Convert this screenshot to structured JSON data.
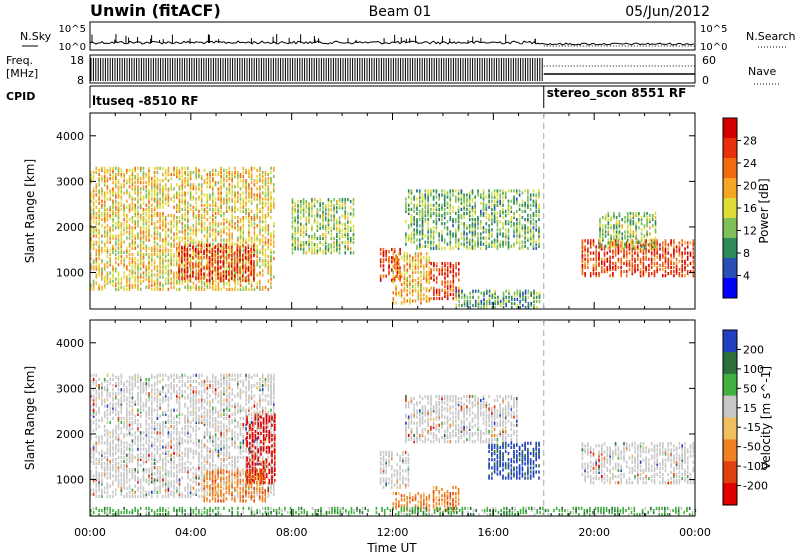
{
  "header": {
    "station": "Unwin (fitACF)",
    "beam": "Beam 01",
    "date": "05/Jun/2012"
  },
  "nsky_panel": {
    "left_label": "N.Sky",
    "right_label": "N.Search",
    "left_ticks": [
      "10^5",
      "10^0"
    ],
    "right_ticks": [
      "10^5",
      "10^0"
    ]
  },
  "freq_panel": {
    "label_line1": "Freq.",
    "label_line2": "[MHz]",
    "left_ticks": [
      "18",
      "8"
    ],
    "right_ticks": [
      "60",
      "0"
    ],
    "right_label": "Nave"
  },
  "cpid_panel": {
    "label": "CPID",
    "modes": [
      {
        "name": "ltuseq -8510 RF",
        "start_hour": 0,
        "end_hour": 18
      },
      {
        "name": "stereo_scon 8551 RF",
        "start_hour": 18,
        "end_hour": 24
      }
    ]
  },
  "x_axis": {
    "label": "Time UT",
    "ticks": [
      "00:00",
      "04:00",
      "08:00",
      "12:00",
      "16:00",
      "20:00",
      "00:00"
    ]
  },
  "mode_change_hour": 18,
  "colors": {
    "power": [
      "#0000ff",
      "#2a4fb4",
      "#2e8b57",
      "#7fbf5a",
      "#dede3a",
      "#f5a623",
      "#f06a10",
      "#e8310a",
      "#d40000"
    ],
    "velocity": [
      "#2040c0",
      "#2e6e3a",
      "#40b040",
      "#c8c8c8",
      "#f0c060",
      "#f08020",
      "#e04010",
      "#e00000"
    ]
  },
  "chart_data": [
    {
      "type": "heatmap",
      "title": "Power",
      "xlabel": "Time UT",
      "ylabel": "Slant Range [km]",
      "xlim": [
        0,
        24
      ],
      "ylim": [
        200,
        4500
      ],
      "yticks": [
        "1000",
        "2000",
        "3000",
        "4000"
      ],
      "colorbar": {
        "label": "Power [dB]",
        "ticks": [
          "4",
          "8",
          "12",
          "16",
          "20",
          "24",
          "28"
        ],
        "range": [
          0,
          32
        ]
      },
      "regions": [
        {
          "t0": 0.0,
          "t1": 7.3,
          "r0": 600,
          "r1": 3300,
          "level": 0.55
        },
        {
          "t0": 3.5,
          "t1": 6.5,
          "r0": 800,
          "r1": 1600,
          "level": 0.9
        },
        {
          "t0": 8.0,
          "t1": 10.5,
          "r0": 1400,
          "r1": 2600,
          "level": 0.4
        },
        {
          "t0": 11.5,
          "t1": 12.3,
          "r0": 800,
          "r1": 1500,
          "level": 0.9
        },
        {
          "t0": 12.0,
          "t1": 13.5,
          "r0": 300,
          "r1": 1400,
          "level": 0.6
        },
        {
          "t0": 13.5,
          "t1": 14.7,
          "r0": 400,
          "r1": 1200,
          "level": 0.85
        },
        {
          "t0": 12.5,
          "t1": 17.8,
          "r0": 1500,
          "r1": 2800,
          "level": 0.35
        },
        {
          "t0": 14.5,
          "t1": 17.8,
          "r0": 200,
          "r1": 600,
          "level": 0.3
        },
        {
          "t0": 19.5,
          "t1": 24.0,
          "r0": 900,
          "r1": 1700,
          "level": 0.85
        },
        {
          "t0": 20.2,
          "t1": 22.5,
          "r0": 1500,
          "r1": 2300,
          "level": 0.4
        }
      ]
    },
    {
      "type": "heatmap",
      "title": "Velocity",
      "xlabel": "Time UT",
      "ylabel": "Slant Range [km]",
      "xlim": [
        0,
        24
      ],
      "ylim": [
        200,
        4500
      ],
      "yticks": [
        "1000",
        "2000",
        "3000",
        "4000"
      ],
      "colorbar": {
        "label": "Velocity [m s^-1]",
        "ticks": [
          "200",
          "100",
          "50",
          "15",
          "-15",
          "-50",
          "-100",
          "-200"
        ],
        "range": [
          -250,
          250
        ]
      },
      "regions": [
        {
          "t0": 0.0,
          "t1": 7.3,
          "r0": 600,
          "r1": 3300,
          "level": 3
        },
        {
          "t0": 6.2,
          "t1": 7.4,
          "r0": 900,
          "r1": 2400,
          "level": 7
        },
        {
          "t0": 4.5,
          "t1": 7.0,
          "r0": 500,
          "r1": 1200,
          "level": 5
        },
        {
          "t0": 11.5,
          "t1": 12.6,
          "r0": 800,
          "r1": 1600,
          "level": 3
        },
        {
          "t0": 12.0,
          "t1": 13.5,
          "r0": 300,
          "r1": 700,
          "level": 5
        },
        {
          "t0": 13.6,
          "t1": 14.6,
          "r0": 300,
          "r1": 800,
          "level": 5
        },
        {
          "t0": 15.8,
          "t1": 17.8,
          "r0": 1000,
          "r1": 1800,
          "level": 0
        },
        {
          "t0": 12.5,
          "t1": 17.0,
          "r0": 1800,
          "r1": 2800,
          "level": 3
        },
        {
          "t0": 19.5,
          "t1": 24.0,
          "r0": 900,
          "r1": 1800,
          "level": 3
        },
        {
          "t0": 0.0,
          "t1": 24.0,
          "r0": 200,
          "r1": 350,
          "level": 2
        }
      ]
    }
  ]
}
